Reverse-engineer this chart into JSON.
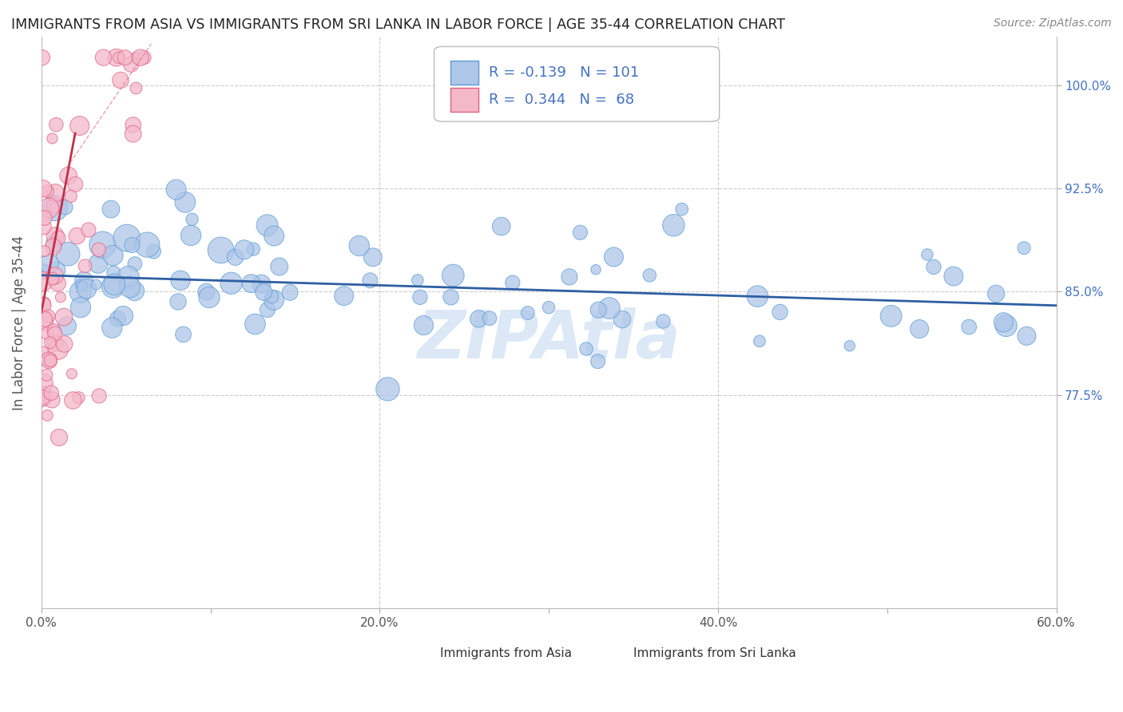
{
  "title": "IMMIGRANTS FROM ASIA VS IMMIGRANTS FROM SRI LANKA IN LABOR FORCE | AGE 35-44 CORRELATION CHART",
  "source_text": "Source: ZipAtlas.com",
  "ylabel": "In Labor Force | Age 35-44",
  "xlim": [
    0.0,
    0.6
  ],
  "ylim": [
    0.62,
    1.035
  ],
  "xticks": [
    0.0,
    0.1,
    0.2,
    0.3,
    0.4,
    0.5,
    0.6
  ],
  "xticklabels": [
    "0.0%",
    "",
    "20.0%",
    "",
    "40.0%",
    "",
    "60.0%"
  ],
  "yticks": [
    0.775,
    0.85,
    0.925,
    1.0
  ],
  "yticklabels": [
    "77.5%",
    "85.0%",
    "92.5%",
    "100.0%"
  ],
  "legend_R_asia": "-0.139",
  "legend_N_asia": "101",
  "legend_R_srilanka": "0.344",
  "legend_N_srilanka": "68",
  "asia_color": "#aec6e8",
  "asia_edge_color": "#5b9bd5",
  "srilanka_color": "#f4b8cb",
  "srilanka_edge_color": "#e06080",
  "trend_asia_color": "#2e5fa3",
  "trend_srilanka_color": "#c0304a",
  "watermark_color": "#c5d9f0",
  "background_color": "#ffffff",
  "grid_color": "#cccccc",
  "tick_color": "#4472c4",
  "title_color": "#222222",
  "label_color": "#555555"
}
